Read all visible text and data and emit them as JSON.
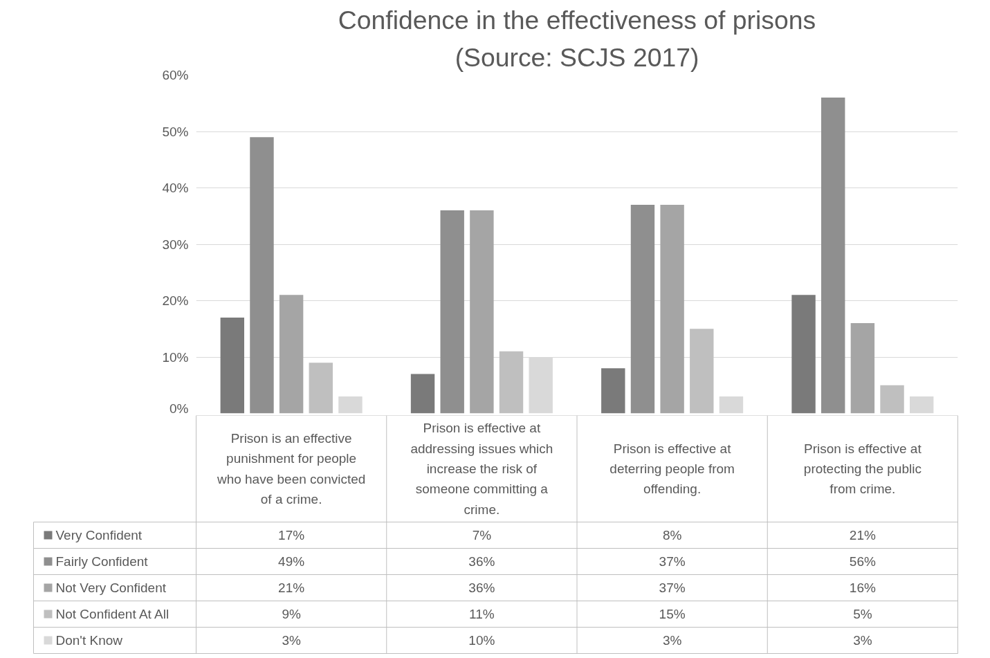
{
  "chart_data": {
    "type": "bar",
    "title": "Confidence in the effectiveness of prisons",
    "subtitle": "(Source: SCJS 2017)",
    "categories": [
      "Prison is an effective punishment for people who have been convicted of a crime.",
      "Prison is effective at addressing issues which increase the risk of someone committing a crime.",
      "Prison is effective at deterring people from offending.",
      "Prison is effective at protecting the public from crime."
    ],
    "series": [
      {
        "name": "Very Confident",
        "color": "#7a7a7a",
        "values": [
          17,
          7,
          8,
          21
        ],
        "value_labels": [
          "17%",
          "7%",
          "8%",
          "21%"
        ]
      },
      {
        "name": "Fairly Confident",
        "color": "#8f8f8f",
        "values": [
          49,
          36,
          37,
          56
        ],
        "value_labels": [
          "49%",
          "36%",
          "37%",
          "56%"
        ]
      },
      {
        "name": "Not Very Confident",
        "color": "#a5a5a5",
        "values": [
          21,
          36,
          37,
          16
        ],
        "value_labels": [
          "21%",
          "36%",
          "37%",
          "16%"
        ]
      },
      {
        "name": "Not Confident At All",
        "color": "#bfbfbf",
        "values": [
          9,
          11,
          15,
          5
        ],
        "value_labels": [
          "9%",
          "11%",
          "15%",
          "5%"
        ]
      },
      {
        "name": "Don't Know",
        "color": "#d9d9d9",
        "values": [
          3,
          10,
          3,
          3
        ],
        "value_labels": [
          "3%",
          "10%",
          "3%",
          "3%"
        ]
      }
    ],
    "ylim": [
      0,
      60
    ],
    "yticks": [
      {
        "value": 0,
        "label": "0%"
      },
      {
        "value": 10,
        "label": "10%"
      },
      {
        "value": 20,
        "label": "20%"
      },
      {
        "value": 30,
        "label": "30%"
      },
      {
        "value": 40,
        "label": "40%"
      },
      {
        "value": 50,
        "label": "50%"
      },
      {
        "value": 60,
        "label": "60%"
      }
    ],
    "grid": "y",
    "legend": "bottom"
  }
}
